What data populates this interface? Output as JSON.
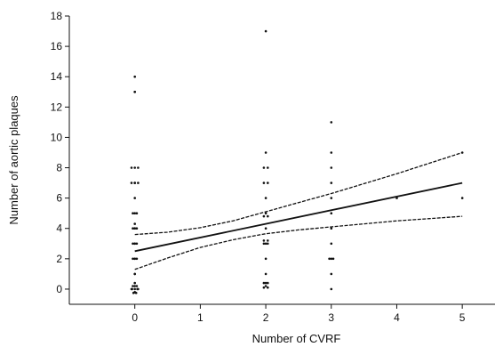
{
  "chart_data": {
    "type": "scatter",
    "xlabel": "Number of CVRF",
    "ylabel": "Number of aortic plaques",
    "xlim": [
      -1,
      5.5
    ],
    "ylim": [
      -1,
      18
    ],
    "xticks": [
      0,
      1,
      2,
      3,
      4,
      5
    ],
    "xtick_labels": [
      "0",
      "1",
      "2",
      "3",
      "4",
      "5"
    ],
    "yticks": [
      0,
      2,
      4,
      6,
      8,
      10,
      12,
      14,
      16,
      18
    ],
    "ytick_labels": [
      "0",
      "2",
      "4",
      "6",
      "8",
      "10",
      "12",
      "14",
      "16",
      "18"
    ],
    "grid": false,
    "colors": {
      "points": "#111111",
      "fit": "#111111",
      "axes": "#111111"
    },
    "points": [
      [
        -0.05,
        0
      ],
      [
        0,
        0
      ],
      [
        0.05,
        0
      ],
      [
        -0.03,
        0.2
      ],
      [
        0.03,
        0.2
      ],
      [
        0,
        0.4
      ],
      [
        0,
        -0.2
      ],
      [
        -0.02,
        -0.25
      ],
      [
        0.02,
        -0.25
      ],
      [
        0,
        1
      ],
      [
        0,
        2
      ],
      [
        0,
        3
      ],
      [
        0,
        4
      ],
      [
        0,
        4.3
      ],
      [
        -0.03,
        5
      ],
      [
        0.03,
        5
      ],
      [
        0,
        7
      ],
      [
        0,
        13
      ],
      [
        -0.04,
        0
      ],
      [
        0,
        -0.2
      ],
      [
        0.04,
        0
      ],
      [
        0,
        0.2
      ],
      [
        0,
        1
      ],
      [
        0,
        2
      ],
      [
        -0.03,
        2
      ],
      [
        0.03,
        2
      ],
      [
        -0.03,
        3
      ],
      [
        0.03,
        3
      ],
      [
        0,
        3
      ],
      [
        -0.03,
        4
      ],
      [
        0.03,
        4
      ],
      [
        0,
        4
      ],
      [
        0,
        5
      ],
      [
        0,
        6
      ],
      [
        -0.05,
        7
      ],
      [
        0,
        7
      ],
      [
        0.05,
        7
      ],
      [
        -0.05,
        8
      ],
      [
        0,
        8
      ],
      [
        0.05,
        8
      ],
      [
        0,
        13
      ],
      [
        0,
        14
      ],
      [
        1.97,
        0.4
      ],
      [
        2,
        0.4
      ],
      [
        2.03,
        0.4
      ],
      [
        1.97,
        0.1
      ],
      [
        2,
        0.2
      ],
      [
        2.03,
        0.1
      ],
      [
        2,
        1
      ],
      [
        2,
        2
      ],
      [
        1.97,
        3
      ],
      [
        2,
        3
      ],
      [
        2.03,
        3
      ],
      [
        1.97,
        3.2
      ],
      [
        2.03,
        3.2
      ],
      [
        2,
        4
      ],
      [
        1.97,
        4.8
      ],
      [
        2,
        5
      ],
      [
        2.03,
        4.8
      ],
      [
        2,
        6
      ],
      [
        1.97,
        7
      ],
      [
        2.03,
        7
      ],
      [
        1.97,
        8
      ],
      [
        2.03,
        8
      ],
      [
        2,
        9
      ],
      [
        2,
        17
      ],
      [
        3,
        0
      ],
      [
        3,
        1
      ],
      [
        2.97,
        2
      ],
      [
        3,
        2
      ],
      [
        3.03,
        2
      ],
      [
        3,
        3
      ],
      [
        3,
        4
      ],
      [
        3,
        5
      ],
      [
        3,
        6
      ],
      [
        3,
        7
      ],
      [
        3,
        8
      ],
      [
        3,
        9
      ],
      [
        3,
        11
      ],
      [
        4,
        6
      ],
      [
        5,
        6
      ],
      [
        5,
        9
      ]
    ],
    "fit_line": {
      "x": [
        0,
        5
      ],
      "y": [
        2.5,
        7.0
      ]
    },
    "ci_upper": {
      "x": [
        0,
        0.5,
        1,
        1.5,
        2,
        2.5,
        3,
        3.5,
        4,
        4.5,
        5
      ],
      "y": [
        3.6,
        3.75,
        4.05,
        4.5,
        5.1,
        5.7,
        6.3,
        6.95,
        7.6,
        8.3,
        9.0
      ]
    },
    "ci_lower": {
      "x": [
        0,
        0.5,
        1,
        1.5,
        2,
        2.5,
        3,
        3.5,
        4,
        4.5,
        5
      ],
      "y": [
        1.3,
        2.05,
        2.75,
        3.25,
        3.65,
        3.9,
        4.1,
        4.3,
        4.5,
        4.65,
        4.8
      ]
    }
  }
}
